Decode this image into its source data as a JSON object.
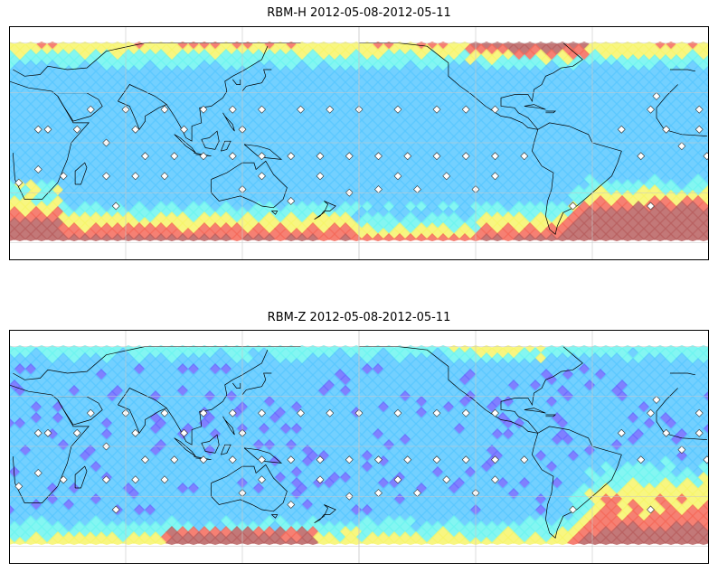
{
  "panels": [
    {
      "id": "rbm-h",
      "title": "RBM-H 2012-05-08-2012-05-11",
      "field": "h"
    },
    {
      "id": "rbm-z",
      "title": "RBM-Z 2012-05-08-2012-05-11",
      "field": "z"
    }
  ],
  "colors": {
    "low": "#6a6aff",
    "mid_low": "#5bc8ff",
    "mid": "#6ef5f0",
    "mid_high": "#f7f56b",
    "high": "#f56a5a",
    "very_high": "#b86060",
    "coast": "#000000",
    "grid": "#c8c8c8",
    "frame": "#000000"
  },
  "map": {
    "grid_on": true,
    "data_lat_range": [
      -60,
      60
    ]
  }
}
